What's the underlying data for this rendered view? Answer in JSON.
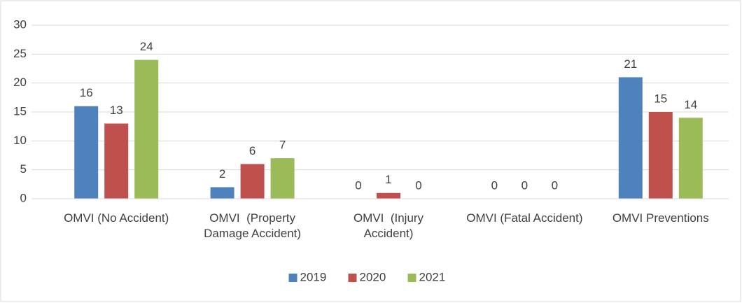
{
  "chart_data": {
    "type": "bar",
    "categories": [
      "OMVI (No Accident)",
      "OMVI  (Property Damage Accident)",
      "OMVI  (Injury Accident)",
      "OMVI (Fatal Accident)",
      "OMVI Preventions"
    ],
    "series": [
      {
        "name": "2019",
        "color": "#4f81bd",
        "values": [
          16,
          2,
          0,
          0,
          21
        ]
      },
      {
        "name": "2020",
        "color": "#c0504d",
        "values": [
          13,
          6,
          1,
          0,
          15
        ]
      },
      {
        "name": "2021",
        "color": "#9bbb59",
        "values": [
          24,
          7,
          0,
          0,
          14
        ]
      }
    ],
    "ylim": [
      0,
      30
    ],
    "yticks": [
      0,
      5,
      10,
      15,
      20,
      25,
      30
    ],
    "grid": true,
    "legend": "bottom"
  }
}
